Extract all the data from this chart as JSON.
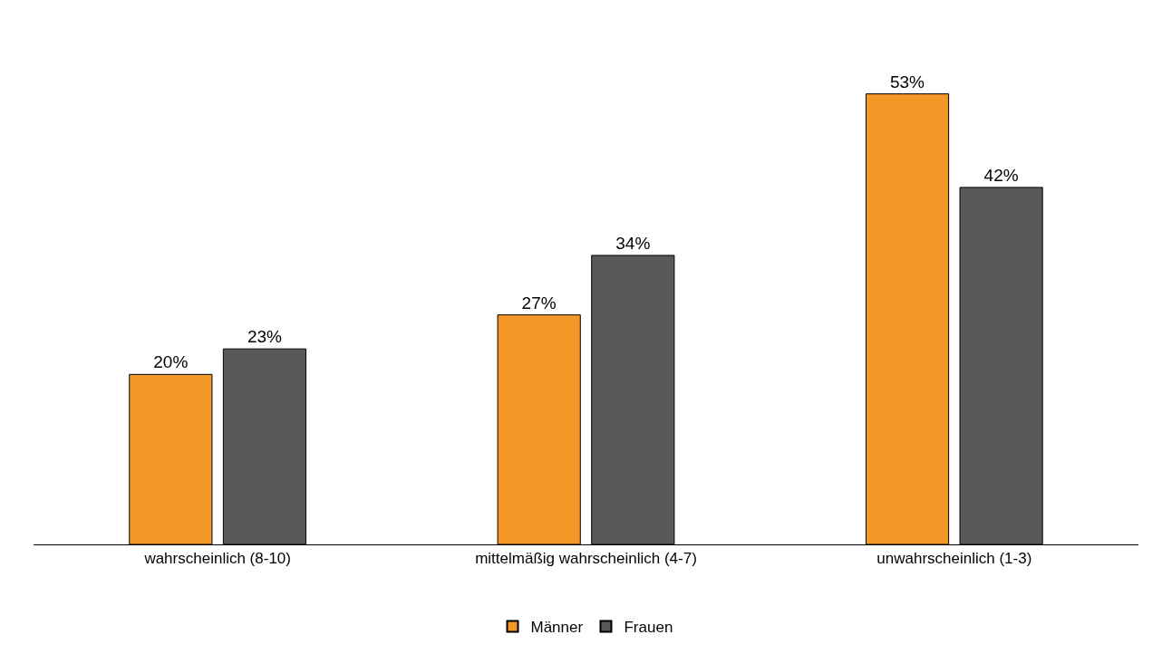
{
  "chart_data": {
    "type": "bar",
    "categories": [
      "wahrscheinlich (8-10)",
      "mittelmäßig wahrscheinlich (4-7)",
      "unwahrscheinlich (1-3)"
    ],
    "series": [
      {
        "name": "Männer",
        "color": "#f39826",
        "values": [
          20,
          27,
          53
        ],
        "value_labels": [
          "20%",
          "27%",
          "53%"
        ]
      },
      {
        "name": "Frauen",
        "color": "#595959",
        "values": [
          23,
          34,
          42
        ],
        "value_labels": [
          "23%",
          "34%",
          "42%"
        ]
      }
    ],
    "legend": "bottom"
  }
}
